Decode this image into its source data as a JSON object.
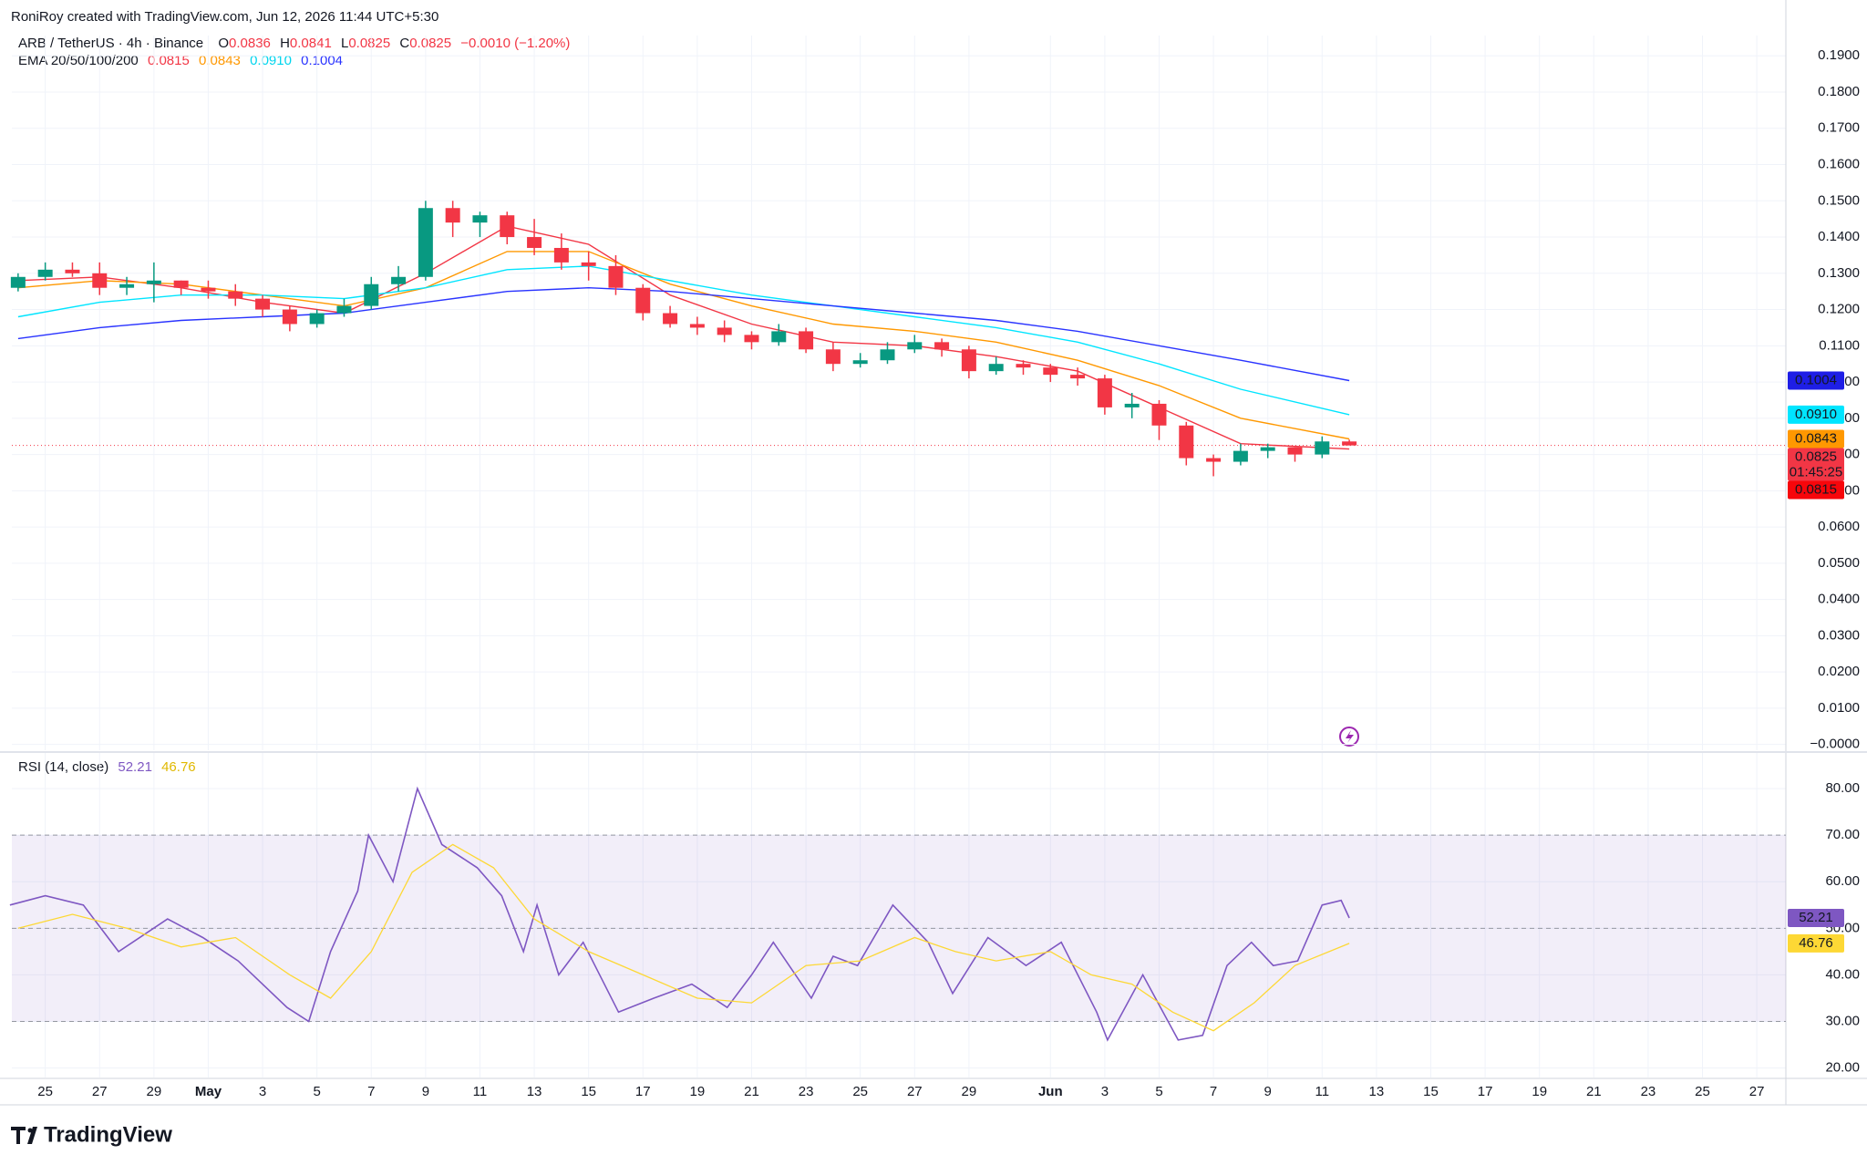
{
  "header": {
    "credit": "RoniRoy created with TradingView.com, Jun 12, 2026 11:44 UTC+5:30",
    "symbol": "ARB / TetherUS · 4h · Binance",
    "ohlc": [
      [
        "O",
        "0.0836"
      ],
      [
        "H",
        "0.0841"
      ],
      [
        "L",
        "0.0825"
      ],
      [
        "C",
        "0.0825"
      ]
    ],
    "change": "−0.0010 (−1.20%)",
    "ema_label": "EMA 20/50/100/200",
    "ema_values": [
      "0.0815",
      "0.0843",
      "0.0910",
      "0.1004"
    ],
    "rsi_label": "RSI (14, close)",
    "rsi_values": [
      "52.21",
      "46.76"
    ],
    "logo": "TradingView"
  },
  "chart_data": [
    {
      "type": "candlestick",
      "up_color": "#089981",
      "down_color": "#f23645",
      "grid": true,
      "xlim": [
        -1.23,
        64.07
      ],
      "ylim": [
        -0.0016,
        0.1956
      ],
      "yticks": [
        {
          "value": 0.19,
          "label": "0.1900"
        },
        {
          "value": 0.18,
          "label": "0.1800"
        },
        {
          "value": 0.17,
          "label": "0.1700"
        },
        {
          "value": 0.16,
          "label": "0.1600"
        },
        {
          "value": 0.15,
          "label": "0.1500"
        },
        {
          "value": 0.14,
          "label": "0.1400"
        },
        {
          "value": 0.13,
          "label": "0.1300"
        },
        {
          "value": 0.12,
          "label": "0.1200"
        },
        {
          "value": 0.11,
          "label": "0.1100"
        },
        {
          "value": 0.1,
          "label": "0.1000"
        },
        {
          "value": 0.09,
          "label": "0.0900"
        },
        {
          "value": 0.08,
          "label": "0.0800"
        },
        {
          "value": 0.07,
          "label": "0.0700"
        },
        {
          "value": 0.06,
          "label": "0.0600"
        },
        {
          "value": 0.05,
          "label": "0.0500"
        },
        {
          "value": 0.04,
          "label": "0.0400"
        },
        {
          "value": 0.03,
          "label": "0.0300"
        },
        {
          "value": 0.02,
          "label": "0.0200"
        },
        {
          "value": 0.01,
          "label": "0.0100"
        },
        {
          "value": 0,
          "label": "−0.0000"
        }
      ],
      "x": [
        -1,
        0,
        1,
        2,
        3,
        4,
        5,
        6,
        7,
        8,
        9,
        10,
        11,
        12,
        13,
        14,
        15,
        16,
        17,
        18,
        19,
        20,
        21,
        22,
        23,
        24,
        25,
        26,
        27,
        28,
        29,
        30,
        31,
        32,
        33,
        34,
        35,
        36,
        37,
        38,
        39,
        40,
        41,
        42,
        43,
        44,
        45,
        46,
        47,
        48
      ],
      "open": [
        0.126,
        0.129,
        0.131,
        0.13,
        0.126,
        0.127,
        0.128,
        0.126,
        0.125,
        0.123,
        0.12,
        0.116,
        0.119,
        0.121,
        0.127,
        0.129,
        0.148,
        0.144,
        0.146,
        0.14,
        0.137,
        0.133,
        0.132,
        0.126,
        0.119,
        0.116,
        0.115,
        0.113,
        0.111,
        0.114,
        0.109,
        0.105,
        0.106,
        0.109,
        0.111,
        0.109,
        0.103,
        0.105,
        0.104,
        0.102,
        0.101,
        0.093,
        0.094,
        0.088,
        0.079,
        0.078,
        0.081,
        0.082,
        0.08,
        0.0836
      ],
      "close": [
        0.129,
        0.131,
        0.13,
        0.126,
        0.127,
        0.128,
        0.126,
        0.125,
        0.123,
        0.12,
        0.116,
        0.119,
        0.121,
        0.127,
        0.129,
        0.148,
        0.144,
        0.146,
        0.14,
        0.137,
        0.133,
        0.132,
        0.126,
        0.119,
        0.116,
        0.115,
        0.113,
        0.111,
        0.114,
        0.109,
        0.105,
        0.106,
        0.109,
        0.111,
        0.109,
        0.103,
        0.105,
        0.104,
        0.102,
        0.101,
        0.093,
        0.094,
        0.088,
        0.079,
        0.078,
        0.081,
        0.082,
        0.08,
        0.0836,
        0.0825
      ],
      "high": [
        0.13,
        0.133,
        0.133,
        0.133,
        0.129,
        0.133,
        0.128,
        0.128,
        0.127,
        0.124,
        0.121,
        0.12,
        0.123,
        0.129,
        0.132,
        0.15,
        0.15,
        0.147,
        0.147,
        0.145,
        0.141,
        0.136,
        0.135,
        0.127,
        0.121,
        0.118,
        0.117,
        0.114,
        0.116,
        0.115,
        0.111,
        0.108,
        0.111,
        0.113,
        0.112,
        0.11,
        0.107,
        0.106,
        0.105,
        0.104,
        0.102,
        0.097,
        0.095,
        0.089,
        0.08,
        0.083,
        0.083,
        0.082,
        0.085,
        0.0841
      ],
      "low": [
        0.125,
        0.128,
        0.129,
        0.124,
        0.124,
        0.122,
        0.124,
        0.123,
        0.121,
        0.118,
        0.114,
        0.115,
        0.118,
        0.12,
        0.125,
        0.128,
        0.14,
        0.14,
        0.138,
        0.135,
        0.131,
        0.128,
        0.124,
        0.117,
        0.115,
        0.113,
        0.111,
        0.109,
        0.11,
        0.108,
        0.103,
        0.104,
        0.105,
        0.108,
        0.107,
        0.101,
        0.102,
        0.102,
        0.1,
        0.099,
        0.091,
        0.09,
        0.084,
        0.077,
        0.074,
        0.077,
        0.079,
        0.078,
        0.079,
        0.0825
      ],
      "lines": [
        {
          "color": "#f23645",
          "x": [
            -1,
            2,
            5,
            8,
            11,
            14,
            17,
            20,
            23,
            26,
            29,
            32,
            35,
            38,
            41,
            44,
            48
          ],
          "values": [
            0.128,
            0.129,
            0.126,
            0.122,
            0.119,
            0.13,
            0.143,
            0.138,
            0.124,
            0.116,
            0.111,
            0.11,
            0.107,
            0.103,
            0.093,
            0.083,
            0.0815
          ]
        },
        {
          "color": "#ff9800",
          "x": [
            -1,
            2,
            5,
            8,
            11,
            14,
            17,
            20,
            23,
            26,
            29,
            32,
            35,
            38,
            41,
            44,
            48
          ],
          "values": [
            0.126,
            0.128,
            0.127,
            0.124,
            0.121,
            0.126,
            0.136,
            0.136,
            0.127,
            0.121,
            0.116,
            0.114,
            0.111,
            0.106,
            0.099,
            0.09,
            0.0843
          ]
        },
        {
          "color": "#00e5ff",
          "x": [
            -1,
            2,
            5,
            8,
            11,
            14,
            17,
            20,
            23,
            26,
            29,
            32,
            35,
            38,
            41,
            44,
            48
          ],
          "values": [
            0.118,
            0.122,
            0.124,
            0.124,
            0.123,
            0.126,
            0.131,
            0.132,
            0.128,
            0.124,
            0.121,
            0.118,
            0.115,
            0.111,
            0.105,
            0.098,
            0.091
          ]
        },
        {
          "color": "#2933ff",
          "x": [
            -1,
            2,
            5,
            8,
            11,
            14,
            17,
            20,
            23,
            26,
            29,
            32,
            35,
            38,
            41,
            44,
            48
          ],
          "values": [
            0.112,
            0.115,
            0.117,
            0.118,
            0.119,
            0.122,
            0.125,
            0.126,
            0.125,
            0.123,
            0.121,
            0.119,
            0.117,
            0.114,
            0.11,
            0.106,
            0.1004
          ]
        }
      ],
      "price_labels": [
        {
          "value": 0.1004,
          "label": "0.1004",
          "color": "#1e1ee6",
          "text_color": "#ffffff"
        },
        {
          "value": 0.091,
          "label": "0.0910",
          "color": "#00e5ff",
          "text_color": "#131722"
        },
        {
          "value": 0.0843,
          "label": "0.0843",
          "color": "#ff9800",
          "text_color": "#ffffff"
        },
        {
          "value": 0.0825,
          "label": "0.0825",
          "color": "#f23645",
          "text_color": "#ffffff"
        },
        {
          "value": 0.0815,
          "label": "0.0815",
          "color": "#f7060b",
          "text_color": "#ffffff"
        }
      ],
      "countdown": "01:45:25"
    },
    {
      "type": "line",
      "grid": true,
      "xlim": [
        -1.23,
        64.07
      ],
      "ylim": [
        17.96,
        87.65
      ],
      "yticks": [
        {
          "value": 80,
          "label": "80.00"
        },
        {
          "value": 70,
          "label": "70.00"
        },
        {
          "value": 60,
          "label": "60.00"
        },
        {
          "value": 50,
          "label": "50.00"
        },
        {
          "value": 40,
          "label": "40.00"
        },
        {
          "value": 30,
          "label": "30.00"
        },
        {
          "value": 20,
          "label": "20.00"
        }
      ],
      "levels": [
        70,
        50,
        30
      ],
      "xticks": [
        {
          "value": 0,
          "label": "25"
        },
        {
          "value": 2,
          "label": "27"
        },
        {
          "value": 4,
          "label": "29"
        },
        {
          "value": 6,
          "label": "May"
        },
        {
          "value": 8,
          "label": "3"
        },
        {
          "value": 10,
          "label": "5"
        },
        {
          "value": 12,
          "label": "7"
        },
        {
          "value": 14,
          "label": "9"
        },
        {
          "value": 16,
          "label": "11"
        },
        {
          "value": 18,
          "label": "13"
        },
        {
          "value": 20,
          "label": "15"
        },
        {
          "value": 22,
          "label": "17"
        },
        {
          "value": 24,
          "label": "19"
        },
        {
          "value": 26,
          "label": "21"
        },
        {
          "value": 28,
          "label": "23"
        },
        {
          "value": 30,
          "label": "25"
        },
        {
          "value": 32,
          "label": "27"
        },
        {
          "value": 34,
          "label": "29"
        },
        {
          "value": 37,
          "label": "Jun"
        },
        {
          "value": 39,
          "label": "3"
        },
        {
          "value": 41,
          "label": "5"
        },
        {
          "value": 43,
          "label": "7"
        },
        {
          "value": 45,
          "label": "9"
        },
        {
          "value": 47,
          "label": "11"
        },
        {
          "value": 49,
          "label": "13"
        },
        {
          "value": 51,
          "label": "15"
        },
        {
          "value": 53,
          "label": "17"
        },
        {
          "value": 55,
          "label": "19"
        },
        {
          "value": 57,
          "label": "21"
        },
        {
          "value": 59,
          "label": "23"
        },
        {
          "value": 61,
          "label": "25"
        },
        {
          "value": 63,
          "label": "27"
        }
      ],
      "series": [
        {
          "color": "#7e57c2",
          "x": [
            -1.3,
            0,
            1.4,
            2.7,
            4.5,
            5.8,
            7.1,
            8.9,
            9.7,
            10.5,
            11.5,
            11.9,
            12.8,
            13.7,
            14.6,
            15.9,
            16.8,
            17.6,
            18.1,
            18.9,
            19.8,
            21.1,
            22.4,
            23.8,
            25.1,
            26,
            26.8,
            28.2,
            29,
            29.9,
            31.2,
            32.5,
            33.4,
            34.7,
            36.1,
            37.4,
            38.7,
            39.1,
            40.4,
            41.7,
            42.6,
            43.5,
            44.4,
            45.2,
            46.1,
            47,
            47.7,
            48
          ],
          "values": [
            55,
            57,
            55,
            45,
            52,
            48,
            43,
            33,
            30,
            45,
            58,
            70,
            60,
            80,
            68,
            63,
            57,
            45,
            55,
            40,
            47,
            32,
            35,
            38,
            33,
            40,
            47,
            35,
            44,
            42,
            55,
            47,
            36,
            48,
            42,
            47,
            32,
            26,
            40,
            26,
            27,
            42,
            47,
            42,
            43,
            55,
            56,
            52.21
          ]
        },
        {
          "color": "#fdd835",
          "x": [
            -1,
            1,
            3,
            5,
            7,
            9,
            10.5,
            12,
            13.5,
            15,
            16.5,
            18,
            20,
            22,
            24,
            26,
            28,
            30,
            32,
            33.5,
            35,
            37,
            38.5,
            40,
            41.5,
            43,
            44.5,
            46,
            48
          ],
          "values": [
            50,
            53,
            50,
            46,
            48,
            40,
            35,
            45,
            62,
            68,
            63,
            52,
            45,
            40,
            35,
            34,
            42,
            43,
            48,
            45,
            43,
            45,
            40,
            38,
            32,
            28,
            34,
            42,
            46.76
          ]
        }
      ],
      "price_labels": [
        {
          "value": 52.21,
          "label": "52.21",
          "color": "#7e57c2",
          "text_color": "#ffffff"
        },
        {
          "value": 46.76,
          "label": "46.76",
          "color": "#fdd835",
          "text_color": "#131722"
        }
      ]
    }
  ]
}
